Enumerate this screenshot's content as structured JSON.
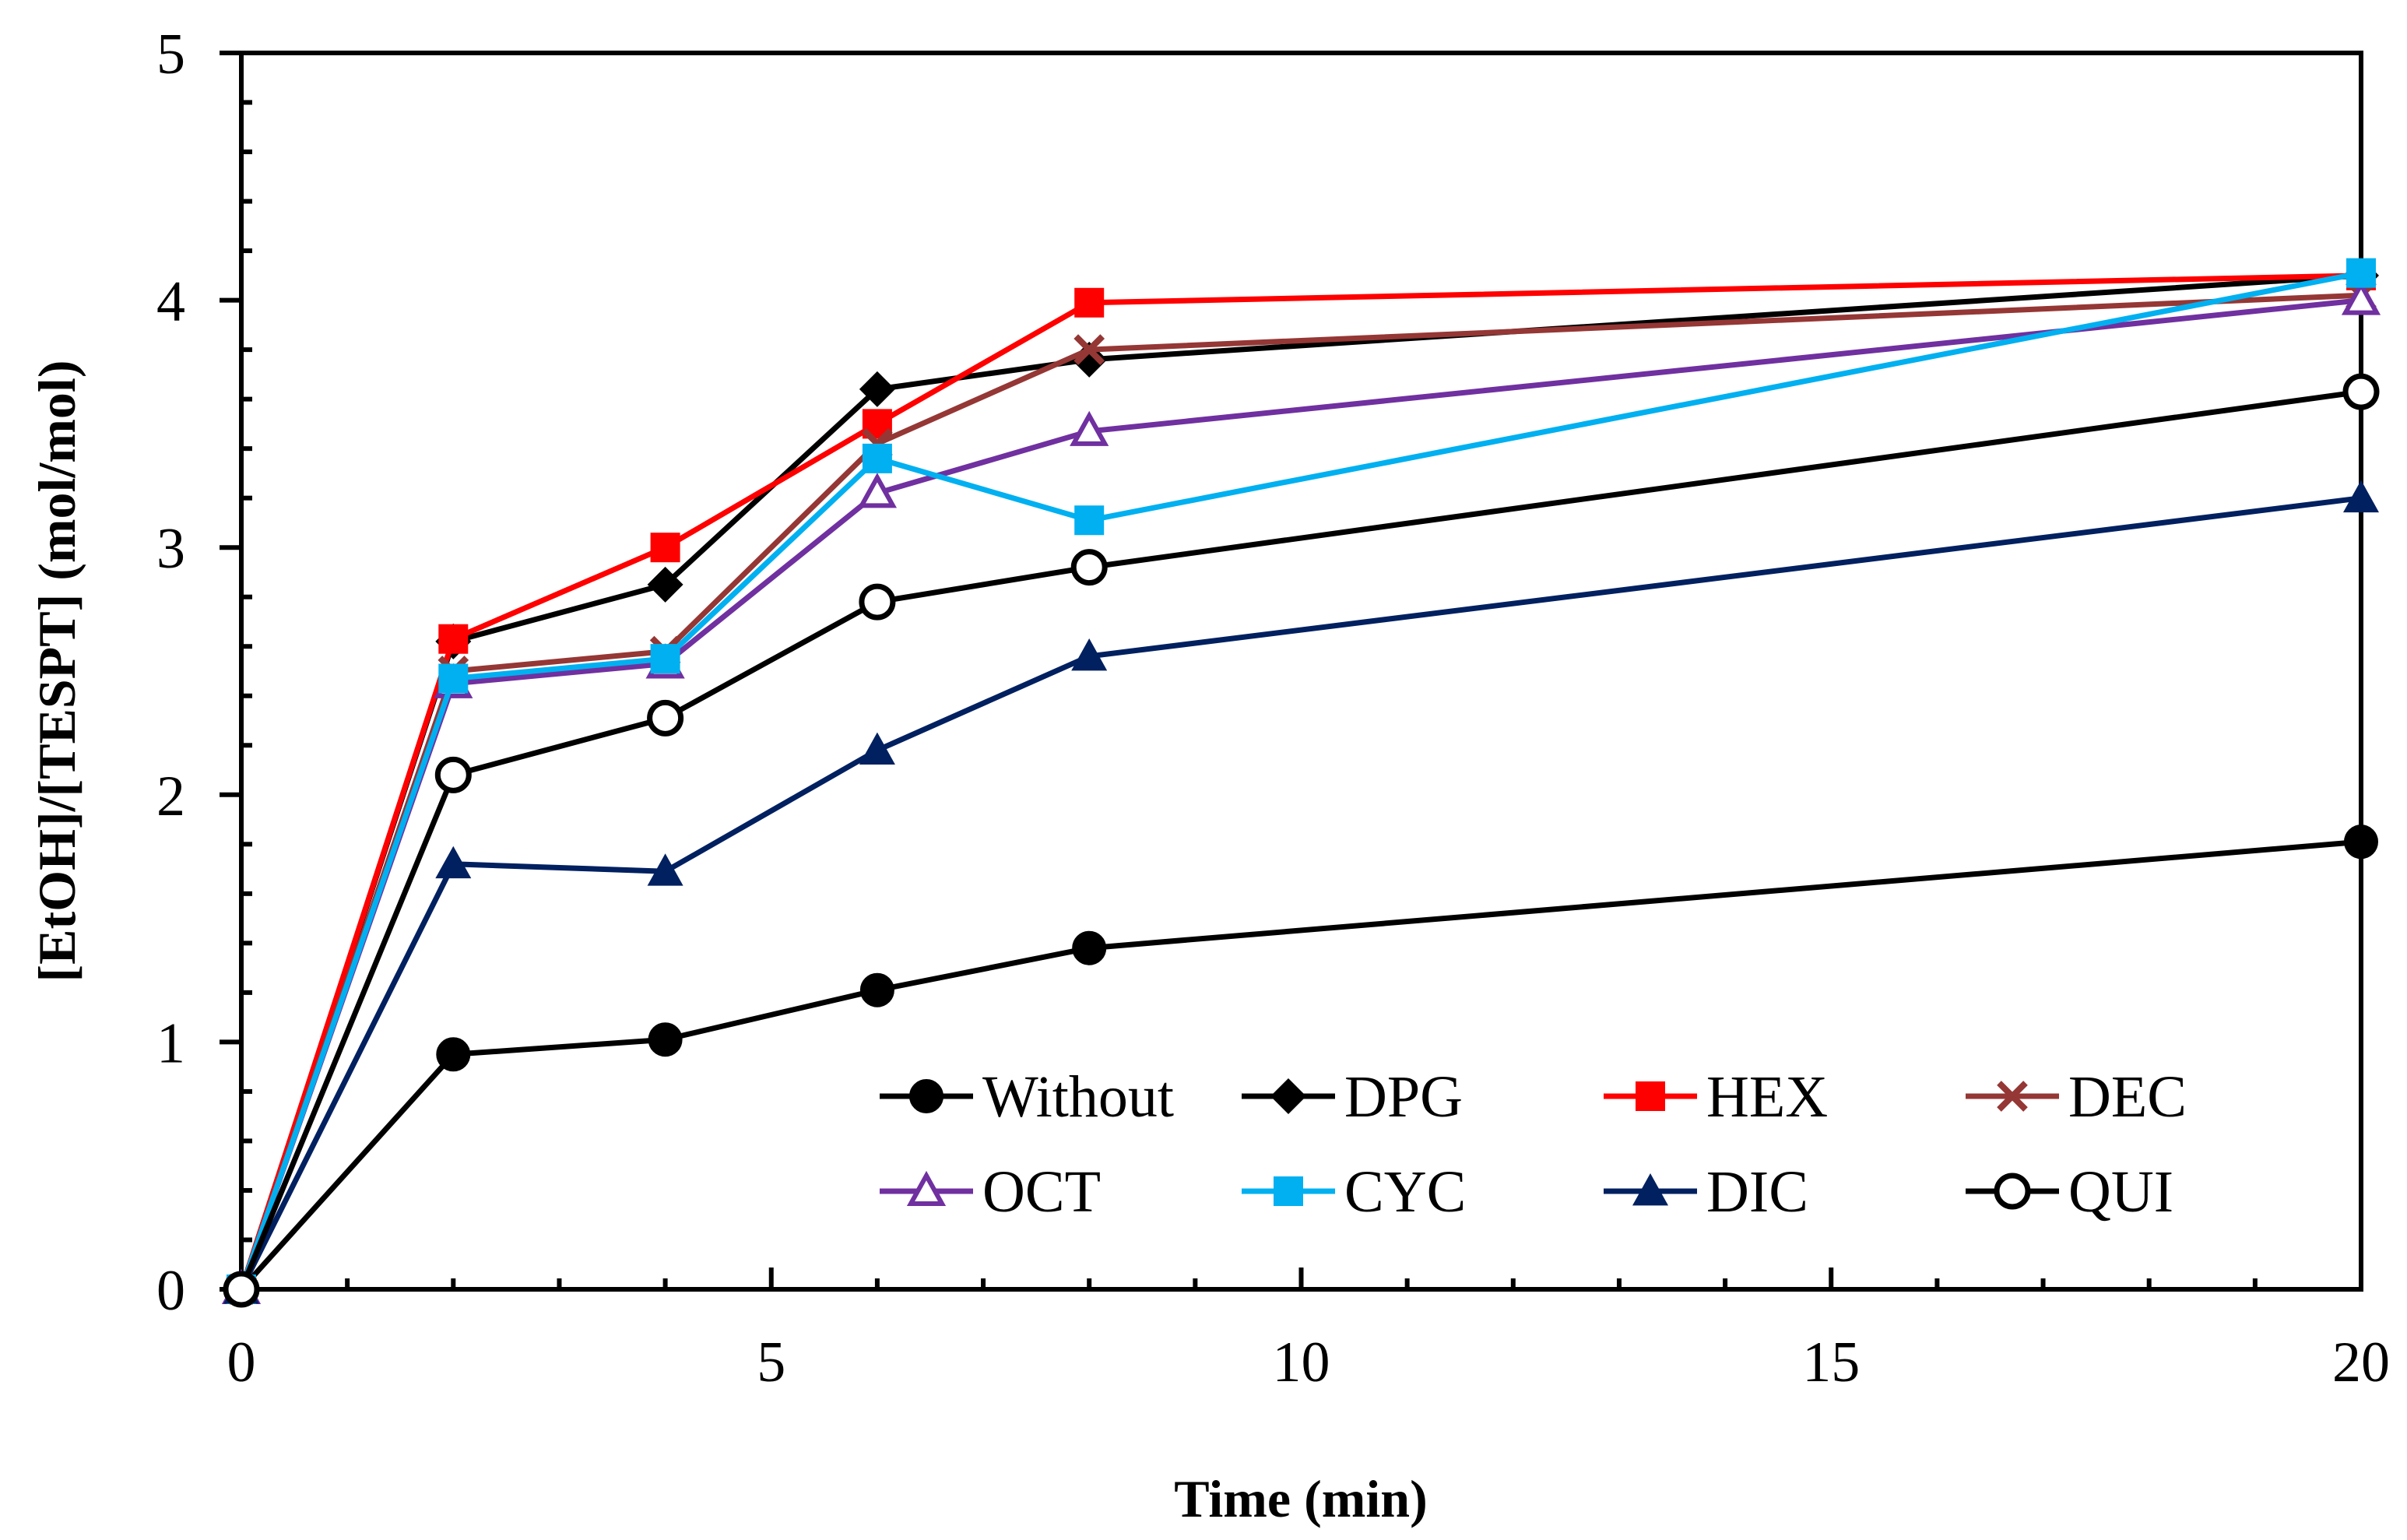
{
  "chart_data": {
    "type": "line",
    "title": "",
    "xlabel": "Time (min)",
    "ylabel": "[EtOH]/[TESPT]  (mol/mol)",
    "xlim": [
      0,
      20
    ],
    "ylim": [
      0,
      5
    ],
    "xticks": [
      0,
      5,
      10,
      15,
      20
    ],
    "yticks": [
      0,
      1,
      2,
      3,
      4,
      5
    ],
    "x_minor_step": 1,
    "y_minor_step": 0.2,
    "grid": false,
    "legend_position": "bottom-right",
    "x": [
      0,
      2,
      4,
      6,
      8,
      20
    ],
    "series": [
      {
        "name": "Without",
        "color": "#000000",
        "marker": "circle-filled",
        "values": [
          0,
          0.95,
          1.01,
          1.21,
          1.38,
          1.81
        ]
      },
      {
        "name": "DPG",
        "color": "#000000",
        "marker": "diamond-filled",
        "values": [
          0,
          2.62,
          2.85,
          3.64,
          3.76,
          4.1
        ]
      },
      {
        "name": "HEX",
        "color": "#ff0000",
        "marker": "square-filled",
        "values": [
          0,
          2.63,
          3.0,
          3.5,
          3.99,
          4.1
        ]
      },
      {
        "name": "DEC",
        "color": "#953735",
        "marker": "x",
        "values": [
          0,
          2.5,
          2.58,
          3.42,
          3.8,
          4.02
        ]
      },
      {
        "name": "OCT",
        "color": "#7030a0",
        "marker": "triangle-open",
        "values": [
          0,
          2.45,
          2.53,
          3.22,
          3.47,
          4.0
        ]
      },
      {
        "name": "CYC",
        "color": "#00b0f0",
        "marker": "square-filled",
        "values": [
          0,
          2.47,
          2.55,
          3.36,
          3.11,
          4.11
        ]
      },
      {
        "name": "DIC",
        "color": "#002060",
        "marker": "triangle-filled",
        "values": [
          0,
          1.72,
          1.69,
          2.18,
          2.56,
          3.2
        ]
      },
      {
        "name": "QUI",
        "color": "#000000",
        "marker": "circle-open",
        "values": [
          0,
          2.08,
          2.31,
          2.78,
          2.92,
          3.63
        ]
      }
    ]
  }
}
